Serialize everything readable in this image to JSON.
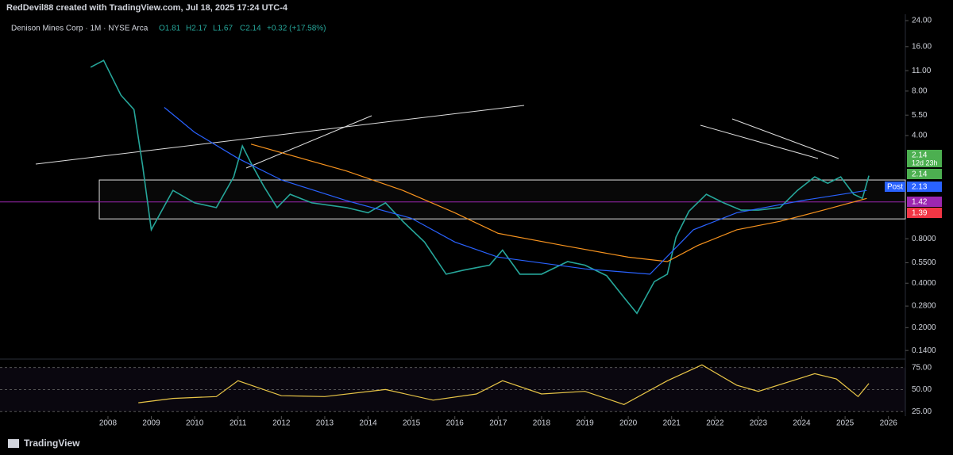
{
  "chart_data": {
    "type": "line",
    "header": "RedDevil88 created with TradingView.com, Jul 18, 2025 17:24 UTC-4",
    "symbol": "Denison Mines Corp · 1M · NYSE Arca",
    "ohlc": [
      "O1.81",
      "H2.17",
      "L1.67",
      "C2.14",
      "+0.32 (+17.58%)"
    ],
    "brand": "TradingView",
    "log_scale": true,
    "xlim": [
      2005.51,
      2026.39
    ],
    "xticks": [
      2008,
      2009,
      2010,
      2011,
      2012,
      2013,
      2014,
      2015,
      2016,
      2017,
      2018,
      2019,
      2020,
      2021,
      2022,
      2023,
      2024,
      2025,
      2026
    ],
    "ylim": [
      0.124,
      26.5
    ],
    "yticks": [
      {
        "value": 24,
        "label": "24.00"
      },
      {
        "value": 16,
        "label": "16.00"
      },
      {
        "value": 11,
        "label": "11.00"
      },
      {
        "value": 8,
        "label": "8.00"
      },
      {
        "value": 5.5,
        "label": "5.50"
      },
      {
        "value": 4,
        "label": "4.00"
      },
      {
        "value": 0.8,
        "label": "0.8000"
      },
      {
        "value": 0.55,
        "label": "0.5500"
      },
      {
        "value": 0.4,
        "label": "0.4000"
      },
      {
        "value": 0.28,
        "label": "0.2800"
      },
      {
        "value": 0.2,
        "label": "0.2000"
      },
      {
        "value": 0.14,
        "label": "0.1400"
      }
    ],
    "zone": [
      1.09,
      2.0
    ],
    "level": 1.42,
    "series": [
      {
        "name": "Price",
        "color": "#26a69a",
        "x": [
          2007.6,
          2007.9,
          2008.3,
          2008.6,
          2008.8,
          2009.0,
          2009.2,
          2009.5,
          2010.0,
          2010.5,
          2010.9,
          2011.1,
          2011.3,
          2011.6,
          2011.9,
          2012.2,
          2012.7,
          2013.5,
          2014.0,
          2014.4,
          2014.8,
          2015.3,
          2015.8,
          2016.2,
          2016.8,
          2017.1,
          2017.5,
          2018.0,
          2018.6,
          2019.0,
          2019.5,
          2019.9,
          2020.2,
          2020.6,
          2020.9,
          2021.1,
          2021.4,
          2021.8,
          2022.2,
          2022.6,
          2023.0,
          2023.5,
          2023.9,
          2024.3,
          2024.6,
          2024.9,
          2025.2,
          2025.4,
          2025.55
        ],
        "values": [
          11.6,
          12.9,
          7.5,
          6.0,
          2.5,
          0.92,
          1.18,
          1.7,
          1.4,
          1.3,
          2.1,
          3.4,
          2.6,
          1.8,
          1.3,
          1.6,
          1.4,
          1.3,
          1.2,
          1.4,
          1.05,
          0.76,
          0.46,
          0.49,
          0.53,
          0.67,
          0.46,
          0.46,
          0.56,
          0.53,
          0.45,
          0.32,
          0.25,
          0.41,
          0.46,
          0.82,
          1.23,
          1.6,
          1.4,
          1.25,
          1.25,
          1.3,
          1.7,
          2.1,
          1.9,
          2.1,
          1.6,
          1.5,
          2.14
        ]
      },
      {
        "name": "MA slow",
        "color": "#f7931e",
        "x": [
          2011.3,
          2013.5,
          2014.8,
          2016.0,
          2017.0,
          2018.5,
          2020.0,
          2020.9,
          2021.6,
          2022.5,
          2023.5,
          2024.5,
          2025.5
        ],
        "values": [
          3.5,
          2.3,
          1.7,
          1.2,
          0.87,
          0.72,
          0.6,
          0.56,
          0.72,
          0.92,
          1.05,
          1.25,
          1.5
        ]
      },
      {
        "name": "MA mid",
        "color": "#2962ff",
        "x": [
          2009.3,
          2010.0,
          2011.0,
          2012.0,
          2013.5,
          2015.0,
          2016.0,
          2017.0,
          2019.0,
          2020.5,
          2021.5,
          2022.5,
          2024.0,
          2025.5
        ],
        "values": [
          6.2,
          4.2,
          2.8,
          2.0,
          1.45,
          1.1,
          0.76,
          0.6,
          0.5,
          0.46,
          0.92,
          1.2,
          1.45,
          1.7
        ]
      }
    ],
    "price_labels": [
      {
        "value": 2.14,
        "sub": "12d 23h",
        "color": "#4caf50"
      },
      {
        "value": 2.14,
        "color": "#4caf50"
      },
      {
        "value": 2.13,
        "tag": "Post",
        "color": "#2962ff"
      },
      {
        "value": 1.42,
        "color": "#9c27b0"
      },
      {
        "value": 1.39,
        "color": "#f23645"
      }
    ],
    "rsi": {
      "ylim": [
        19.8,
        82.8
      ],
      "yticks": [
        {
          "value": 75,
          "label": "75.00"
        },
        {
          "value": 50,
          "label": "50.00"
        },
        {
          "value": 25,
          "label": "25.00"
        }
      ],
      "color": "#e8c547",
      "x": [
        2008.7,
        2009.5,
        2010.5,
        2011.0,
        2012.0,
        2013.0,
        2014.4,
        2015.5,
        2016.5,
        2017.1,
        2018.0,
        2019.0,
        2019.9,
        2020.9,
        2021.7,
        2022.5,
        2023.0,
        2024.3,
        2024.8,
        2025.3,
        2025.55
      ],
      "values": [
        35,
        40,
        42,
        60,
        43,
        42,
        50,
        38,
        45,
        60,
        45,
        48,
        33,
        60,
        78,
        55,
        48,
        68,
        62,
        42,
        57
      ]
    }
  }
}
